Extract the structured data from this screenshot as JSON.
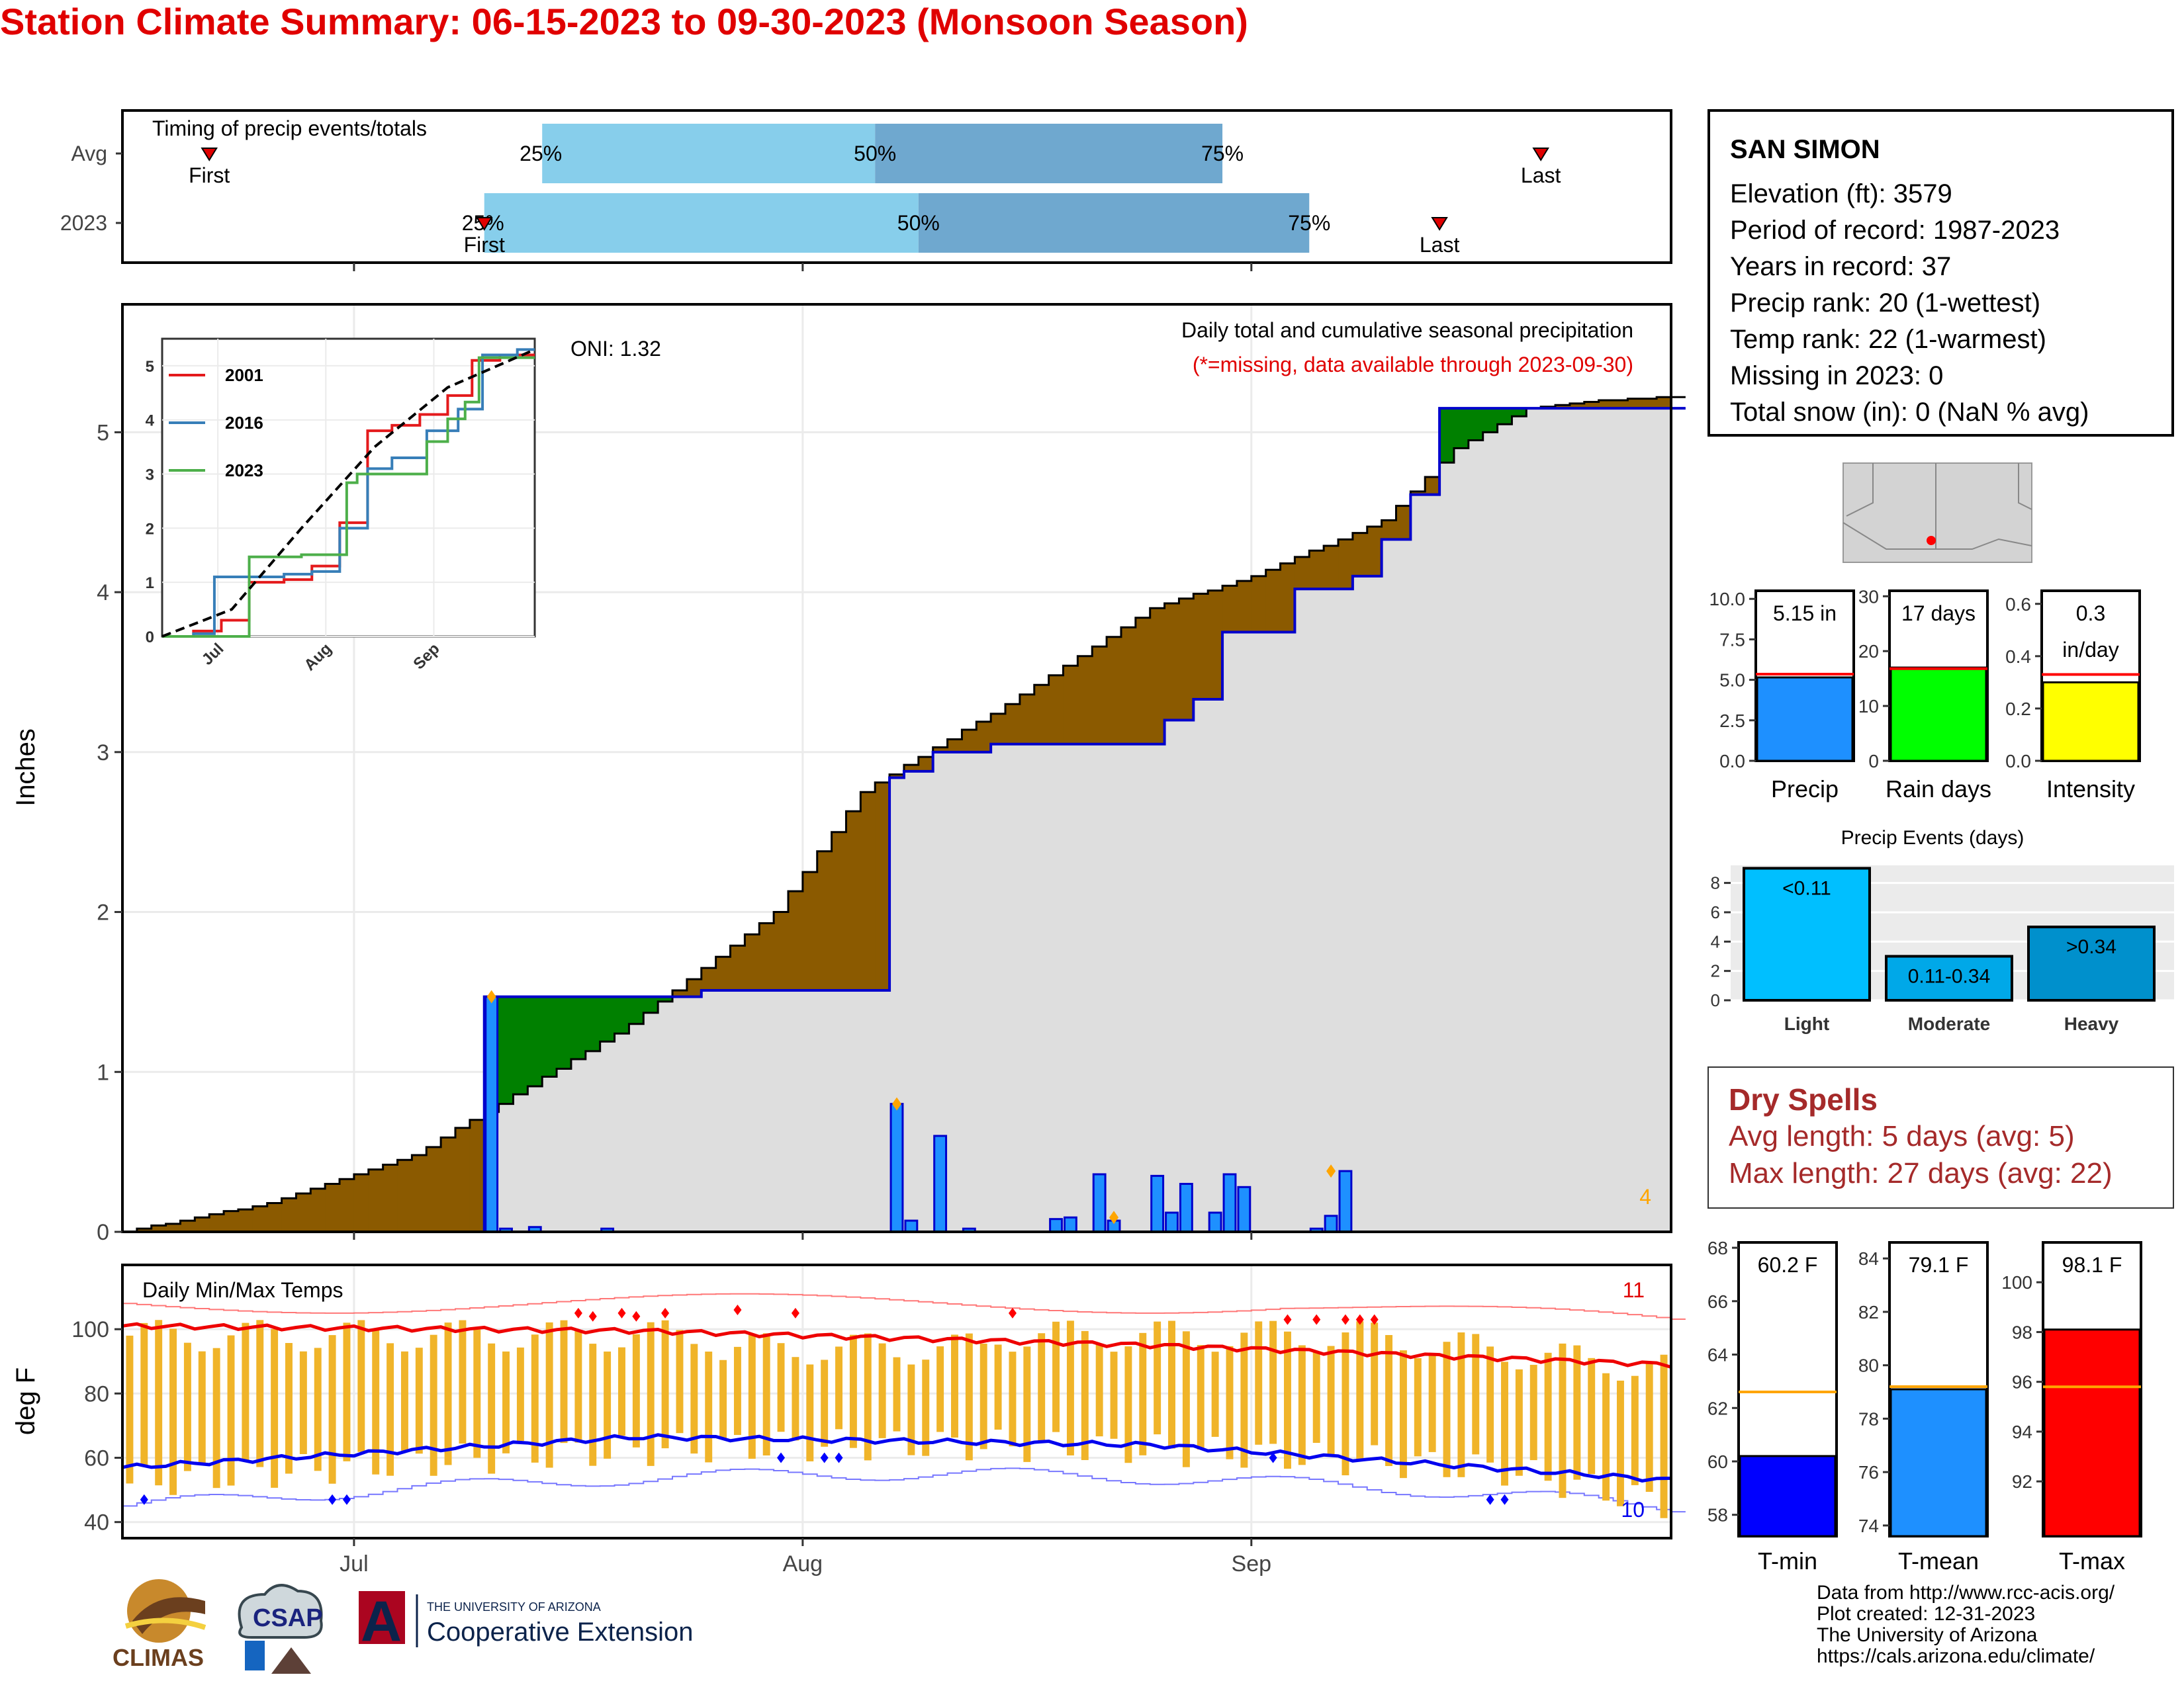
{
  "title": "Station Climate Summary: 06-15-2023 to 09-30-2023 (Monsoon Season)",
  "timing": {
    "label": "Timing of precip events/totals",
    "rows": [
      {
        "name": "Avg",
        "first": "06-21",
        "q25": "07-14",
        "q50": "08-06",
        "q75": "08-30",
        "last": "09-21"
      },
      {
        "name": "2023",
        "first": "07-10",
        "q25": "07-10",
        "q50": "08-09",
        "q75": "09-05",
        "last": "09-14"
      }
    ],
    "first_label": "First",
    "last_label": "Last",
    "q25_label": "25%",
    "q50_label": "50%",
    "q75_label": "75%"
  },
  "main": {
    "ylabel": "Inches",
    "oni": "ONI: 1.32",
    "note": "Daily total and cumulative seasonal precipitation",
    "note2": "(*=missing, data available through 2023-09-30)",
    "corner_count": "4",
    "x_ticks": [
      "Jul",
      "Aug",
      "Sep"
    ],
    "y_ticks": [
      "0",
      "1",
      "2",
      "3",
      "4",
      "5"
    ]
  },
  "inset": {
    "legend": [
      "2001",
      "2016",
      "2023"
    ],
    "x_ticks": [
      "Jul",
      "Aug",
      "Sep"
    ],
    "y_ticks": [
      "0",
      "1",
      "2",
      "3",
      "4",
      "5"
    ]
  },
  "temps": {
    "label": "Daily Min/Max Temps",
    "ylabel": "deg F",
    "count_hi": "11",
    "count_lo": "10",
    "y_ticks": [
      "40",
      "60",
      "80",
      "100"
    ],
    "x_ticks": [
      "Jul",
      "Aug",
      "Sep"
    ]
  },
  "station": {
    "name": "SAN SIMON",
    "elevation": "Elevation (ft): 3579",
    "period": "Period of record: 1987-2023",
    "years": "Years in record: 37",
    "precip_rank": "Precip rank: 20 (1-wettest)",
    "temp_rank": "Temp rank: 22 (1-warmest)",
    "missing": "Missing in 2023: 0",
    "snow": "Total snow (in): 0 (NaN % avg)"
  },
  "summary_bars": [
    {
      "name": "Precip",
      "value": 5.15,
      "avg": 5.35,
      "label": "5.15 in",
      "ymax": 10.5,
      "ticks": [
        "0.0",
        "2.5",
        "5.0",
        "7.5",
        "10.0"
      ],
      "tickvals": [
        0,
        2.5,
        5,
        7.5,
        10
      ],
      "color": "#1e90ff"
    },
    {
      "name": "Rain days",
      "value": 17,
      "avg": 16.8,
      "label": "17 days",
      "ymax": 31,
      "ticks": [
        "0",
        "10",
        "20",
        "30"
      ],
      "tickvals": [
        0,
        10,
        20,
        30
      ],
      "color": "#00ff00"
    },
    {
      "name": "Intensity",
      "value": 0.3,
      "avg": 0.33,
      "label": "0.3",
      "label2": "in/day",
      "ymax": 0.65,
      "ticks": [
        "0.0",
        "0.2",
        "0.4",
        "0.6"
      ],
      "tickvals": [
        0,
        0.2,
        0.4,
        0.6
      ],
      "color": "#ffff00"
    }
  ],
  "events": {
    "title": "Precip Events (days)",
    "categories": [
      "Light",
      "Moderate",
      "Heavy"
    ],
    "values": [
      9,
      3,
      5
    ],
    "labels": [
      "<0.11",
      "0.11-0.34",
      ">0.34"
    ],
    "ticks": [
      "0",
      "2",
      "4",
      "6",
      "8"
    ],
    "colors": [
      "#00bfff",
      "#00a8e8",
      "#0090cc"
    ]
  },
  "dry": {
    "title": "Dry Spells",
    "avg": "Avg length: 5 days (avg: 5)",
    "max": "Max length: 27 days (avg: 22)"
  },
  "temp_bars": [
    {
      "name": "T-min",
      "value": 60.2,
      "avg": 62.6,
      "label": "60.2 F",
      "ymin": 57.2,
      "ymax": 68.2,
      "ticks": [
        "58",
        "60",
        "62",
        "64",
        "66",
        "68"
      ],
      "tickvals": [
        58,
        60,
        62,
        64,
        66,
        68
      ],
      "color": "#0000ff"
    },
    {
      "name": "T-mean",
      "value": 79.1,
      "avg": 79.2,
      "label": "79.1 F",
      "ymin": 73.6,
      "ymax": 84.6,
      "ticks": [
        "74",
        "76",
        "78",
        "80",
        "82",
        "84"
      ],
      "tickvals": [
        74,
        76,
        78,
        80,
        82,
        84
      ],
      "color": "#1e90ff"
    },
    {
      "name": "T-max",
      "value": 98.1,
      "avg": 95.8,
      "label": "98.1 F",
      "ymin": 89.8,
      "ymax": 101.6,
      "ticks": [
        "92",
        "94",
        "96",
        "98",
        "100"
      ],
      "tickvals": [
        92,
        94,
        96,
        98,
        100
      ],
      "color": "#ff0000"
    }
  ],
  "logos": {
    "climas": "CLIMAS",
    "csap": "CSAP",
    "ua_small": "THE UNIVERSITY OF ARIZONA",
    "ua_big": "Cooperative Extension",
    "ua_letter": "A"
  },
  "credits": [
    "Data from http://www.rcc-acis.org/",
    "Plot created: 12-31-2023",
    "The University of Arizona",
    "https://cals.arizona.edu/climate/"
  ],
  "chart_data": [
    {
      "type": "area",
      "title": "Daily total and cumulative seasonal precipitation",
      "ylabel": "Inches",
      "xlim": [
        "06-15",
        "09-30"
      ],
      "ylim": [
        0,
        5.8
      ],
      "series": [
        {
          "name": "2023",
          "x": [
            "06-15",
            "07-10",
            "07-10",
            "07-25",
            "07-25",
            "08-06",
            "08-07",
            "08-08",
            "08-10",
            "08-14",
            "08-18",
            "08-22",
            "08-26",
            "08-28",
            "08-30",
            "08-30",
            "09-04",
            "09-08",
            "09-10",
            "09-10",
            "09-12",
            "09-14",
            "09-22",
            "09-30"
          ],
          "values": [
            0,
            0,
            1.47,
            1.51,
            1.51,
            1.51,
            2.84,
            2.88,
            3.0,
            3.05,
            3.05,
            3.05,
            3.2,
            3.33,
            3.6,
            3.75,
            4.02,
            4.1,
            4.1,
            4.33,
            4.61,
            5.15,
            5.15,
            5.15
          ]
        },
        {
          "name": "",
          "x": [
            "06-15",
            "06-25",
            "07-05",
            "07-09",
            "07-11",
            "07-20",
            "07-30",
            "08-05",
            "08-15",
            "08-25",
            "09-01",
            "09-10",
            "09-15",
            "09-20",
            "09-25",
            "09-30"
          ],
          "values": [
            0,
            0.18,
            0.48,
            0.7,
            0.8,
            1.3,
            2.0,
            2.75,
            3.3,
            3.9,
            4.1,
            4.45,
            4.9,
            5.15,
            5.2,
            5.22
          ]
        }
      ],
      "daily_bars": {
        "x": [
          "07-10",
          "07-11",
          "07-13",
          "07-18",
          "08-07",
          "08-08",
          "08-10",
          "08-12",
          "08-18",
          "08-19",
          "08-21",
          "08-22",
          "08-25",
          "08-26",
          "08-27",
          "08-29",
          "08-30",
          "08-31",
          "09-05",
          "09-06",
          "09-07"
        ],
        "values": [
          1.47,
          0.02,
          0.03,
          0.02,
          0.8,
          0.07,
          0.6,
          0.02,
          0.08,
          0.09,
          0.36,
          0.07,
          0.35,
          0.12,
          0.3,
          0.12,
          0.36,
          0.28,
          0.02,
          0.1,
          0.38
        ]
      }
    },
    {
      "type": "line",
      "title": "",
      "xlim": [
        "06-15",
        "09-30"
      ],
      "ylim": [
        0,
        5.5
      ],
      "series": [
        {
          "name": "2001",
          "color": "#e41a1c",
          "x": [
            "06-15",
            "06-24",
            "07-02",
            "07-10",
            "07-20",
            "07-28",
            "08-05",
            "08-13",
            "08-20",
            "08-28",
            "09-05",
            "09-12",
            "09-20",
            "09-30"
          ],
          "values": [
            0,
            0.1,
            0.3,
            1.0,
            1.05,
            1.3,
            2.1,
            3.8,
            3.9,
            4.1,
            4.45,
            5.1,
            5.2,
            5.2
          ]
        },
        {
          "name": "2016",
          "color": "#377eb8",
          "x": [
            "06-15",
            "06-24",
            "06-30",
            "07-08",
            "07-20",
            "07-28",
            "08-05",
            "08-13",
            "08-20",
            "08-30",
            "09-08",
            "09-15",
            "09-25",
            "09-30"
          ],
          "values": [
            0,
            0.05,
            1.1,
            1.1,
            1.15,
            1.2,
            2.0,
            3.1,
            3.3,
            3.8,
            4.2,
            5.2,
            5.3,
            5.3
          ]
        },
        {
          "name": "2023",
          "color": "#4daf4a",
          "x": [
            "06-15",
            "07-10",
            "07-10",
            "07-25",
            "08-07",
            "08-10",
            "08-30",
            "09-05",
            "09-10",
            "09-14",
            "09-30"
          ],
          "values": [
            0,
            0,
            1.47,
            1.51,
            2.84,
            3.0,
            3.6,
            4.02,
            4.33,
            5.15,
            5.15
          ]
        },
        {
          "name": "",
          "color": "#000000",
          "x": [
            "06-15",
            "07-05",
            "07-25",
            "08-15",
            "09-05",
            "09-30"
          ],
          "values": [
            0,
            0.5,
            2.0,
            3.5,
            4.6,
            5.3
          ]
        }
      ]
    },
    {
      "type": "bar",
      "title": "Daily Min/Max Temps",
      "ylabel": "deg F",
      "ylim": [
        35,
        120
      ],
      "daily_low_range": [
        47,
        67
      ],
      "daily_high_range": [
        85,
        106
      ],
      "mean_max": [
        101,
        99.5,
        95,
        89
      ],
      "mean_min": [
        57,
        66.5,
        64,
        53
      ]
    },
    {
      "type": "bar",
      "title": "",
      "categories": [
        "Precip",
        "Rain days",
        "Intensity"
      ],
      "values": [
        5.15,
        17,
        0.3
      ]
    },
    {
      "type": "bar",
      "title": "Precip Events (days)",
      "categories": [
        "Light",
        "Moderate",
        "Heavy"
      ],
      "values": [
        9,
        3,
        5
      ]
    },
    {
      "type": "bar",
      "title": "",
      "categories": [
        "T-min",
        "T-mean",
        "T-max"
      ],
      "values": [
        60.2,
        79.1,
        98.1
      ]
    }
  ]
}
